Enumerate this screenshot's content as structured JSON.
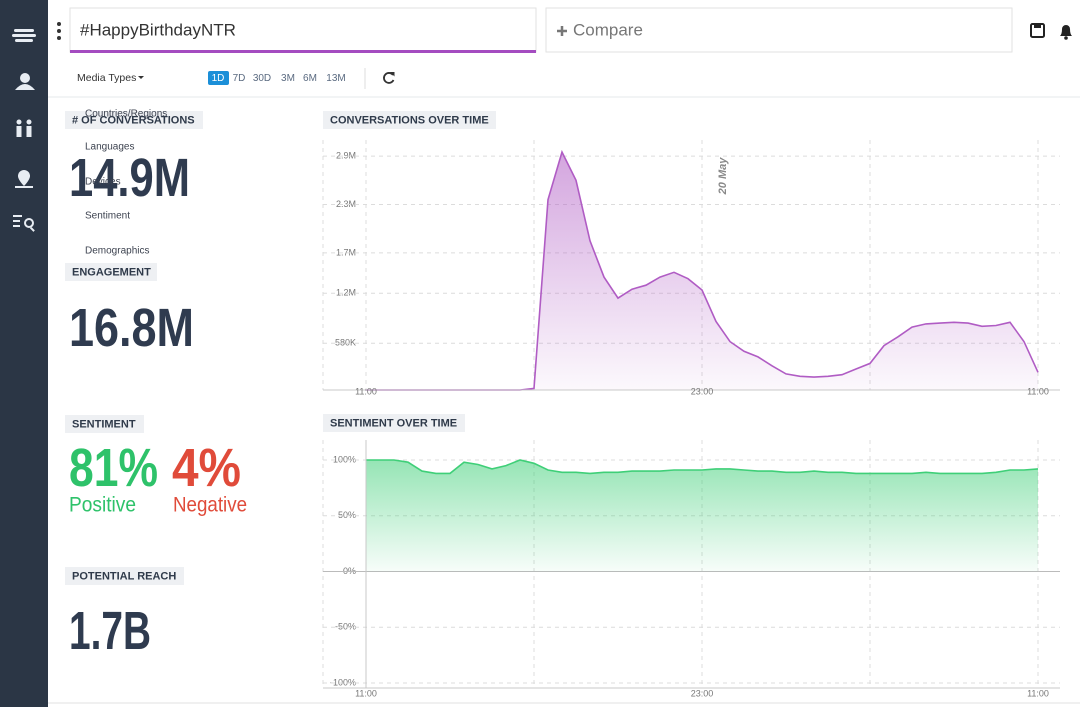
{
  "search": {
    "query": "#HappyBirthdayNTR",
    "compare": "Compare"
  },
  "toolbar": {
    "media_types": "Media Types",
    "ranges": [
      "1D",
      "7D",
      "30D",
      "3M",
      "6M",
      "13M"
    ],
    "active_range": "1D"
  },
  "dropdown": [
    "Countries/Regions",
    "Languages",
    "Devices",
    "Sentiment",
    "Demographics"
  ],
  "stats": {
    "conversations": {
      "label": "# OF CONVERSATIONS",
      "value": "14.9M"
    },
    "engagement": {
      "label": "ENGAGEMENT",
      "value": "16.8M"
    },
    "sentiment": {
      "label": "SENTIMENT",
      "positive": {
        "value": "81%",
        "label": "Positive"
      },
      "negative": {
        "value": "4%",
        "label": "Negative"
      }
    },
    "reach": {
      "label": "POTENTIAL REACH",
      "value": "1.7B"
    }
  },
  "chart_data": [
    {
      "type": "area",
      "title": "CONVERSATIONS OVER TIME",
      "annotation": "20 May",
      "color": "#b05cc4",
      "grid": true,
      "categories": [
        "11:00",
        null,
        null,
        null,
        null,
        null,
        null,
        null,
        null,
        null,
        null,
        null,
        null,
        null,
        null,
        null,
        null,
        null,
        null,
        null,
        null,
        null,
        null,
        null,
        "23:00",
        null,
        null,
        null,
        null,
        null,
        null,
        null,
        null,
        null,
        null,
        null,
        null,
        null,
        null,
        null,
        null,
        null,
        null,
        null,
        null,
        null,
        null,
        null,
        "11:00"
      ],
      "values": [
        0,
        0,
        0,
        0,
        0,
        0,
        0,
        0,
        0,
        0,
        0,
        0,
        20000,
        2360000,
        2950000,
        2600000,
        1850000,
        1400000,
        1140000,
        1250000,
        1300000,
        1400000,
        1460000,
        1380000,
        1240000,
        850000,
        600000,
        480000,
        410000,
        300000,
        200000,
        170000,
        160000,
        170000,
        190000,
        260000,
        330000,
        550000,
        660000,
        780000,
        820000,
        830000,
        840000,
        830000,
        790000,
        800000,
        840000,
        600000,
        220000
      ],
      "ylim": [
        0,
        3100000
      ],
      "yticks": [
        {
          "value": 580000,
          "label": "580K"
        },
        {
          "value": 1200000,
          "label": "1.2M"
        },
        {
          "value": 1700000,
          "label": "1.7M"
        },
        {
          "value": 2300000,
          "label": "2.3M"
        },
        {
          "value": 2900000,
          "label": "2.9M"
        }
      ]
    },
    {
      "type": "area",
      "title": "SENTIMENT OVER TIME",
      "color": "#3fcf78",
      "grid": true,
      "categories": [
        "11:00",
        null,
        null,
        null,
        null,
        null,
        null,
        null,
        null,
        null,
        null,
        null,
        null,
        null,
        null,
        null,
        null,
        null,
        null,
        null,
        null,
        null,
        null,
        null,
        "23:00",
        null,
        null,
        null,
        null,
        null,
        null,
        null,
        null,
        null,
        null,
        null,
        null,
        null,
        null,
        null,
        null,
        null,
        null,
        null,
        null,
        null,
        null,
        null,
        "11:00"
      ],
      "values": [
        100,
        100,
        100,
        98,
        90,
        88,
        88,
        98,
        96,
        92,
        95,
        100,
        97,
        91,
        89,
        89,
        88,
        89,
        89,
        90,
        90,
        90,
        91,
        91,
        91,
        92,
        92,
        91,
        90,
        90,
        89,
        89,
        90,
        89,
        89,
        88,
        88,
        88,
        88,
        88,
        89,
        88,
        88,
        88,
        88,
        89,
        91,
        91,
        92
      ],
      "ylim": [
        -100,
        100
      ],
      "yticks": [
        {
          "value": -100,
          "label": "-100%"
        },
        {
          "value": -50,
          "label": "-50%"
        },
        {
          "value": 0,
          "label": "0%"
        },
        {
          "value": 50,
          "label": "50%"
        },
        {
          "value": 100,
          "label": "100%"
        }
      ]
    }
  ]
}
